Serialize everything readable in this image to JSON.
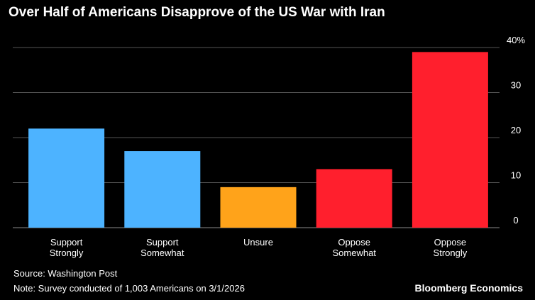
{
  "title": "Over Half of Americans Disapprove of the US War with Iran",
  "footer": {
    "source": "Source: Washington Post",
    "note": "Note: Survey conducted of 1,003 Americans on 3/1/2026",
    "brand": "Bloomberg Economics"
  },
  "chart_data": {
    "type": "bar",
    "categories": [
      [
        "Support",
        "Strongly"
      ],
      [
        "Support",
        "Somewhat"
      ],
      [
        "Unsure"
      ],
      [
        "Oppose",
        "Somewhat"
      ],
      [
        "Oppose",
        "Strongly"
      ]
    ],
    "values": [
      22,
      17,
      9,
      13,
      39
    ],
    "colors": [
      "#4db3ff",
      "#4db3ff",
      "#ffa31a",
      "#ff1f2d",
      "#ff1f2d"
    ],
    "ylim": [
      0,
      40
    ],
    "yticks": [
      0,
      10,
      20,
      30,
      40
    ],
    "ytick_labels": [
      "0",
      "10",
      "20",
      "30",
      "40%"
    ],
    "grid": true,
    "axis_side": "right",
    "title": "Over Half of Americans Disapprove of the US War with Iran",
    "xlabel": "",
    "ylabel": ""
  }
}
